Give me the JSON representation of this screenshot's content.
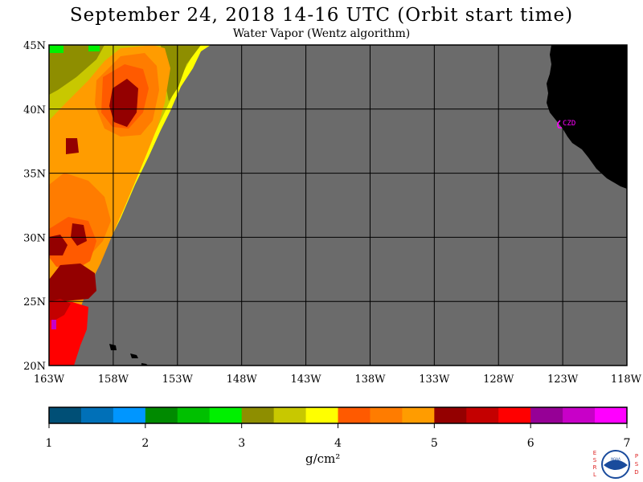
{
  "header": {
    "title": "September 24, 2018  14-16 UTC  (Orbit start time)",
    "subtitle": "Water Vapor (Wentz algorithm)"
  },
  "map": {
    "lat_ticks": [
      "45N",
      "40N",
      "35N",
      "30N",
      "25N",
      "20N"
    ],
    "lon_ticks": [
      "163W",
      "158W",
      "153W",
      "148W",
      "143W",
      "138W",
      "133W",
      "128W",
      "123W",
      "118W"
    ],
    "station_label": "CZD",
    "no_data_color": "#6b6b6b",
    "land_color": "#000000",
    "station_color": "#ff00ff"
  },
  "colorbar": {
    "ticks": [
      "1",
      "2",
      "3",
      "4",
      "5",
      "6",
      "7"
    ],
    "units": "g/cm²",
    "colors": [
      "#004f76",
      "#0070b8",
      "#0096ff",
      "#008a00",
      "#00c000",
      "#00f000",
      "#8e8e00",
      "#c8c800",
      "#ffff00",
      "#ff5a00",
      "#ff7c00",
      "#ff9c00",
      "#940000",
      "#c40000",
      "#ff0000",
      "#960096",
      "#c800c8",
      "#ff00ff"
    ]
  },
  "logo": {
    "left_letters": "ESRL",
    "right_letters": "PSD",
    "center_text": "NOAA"
  }
}
